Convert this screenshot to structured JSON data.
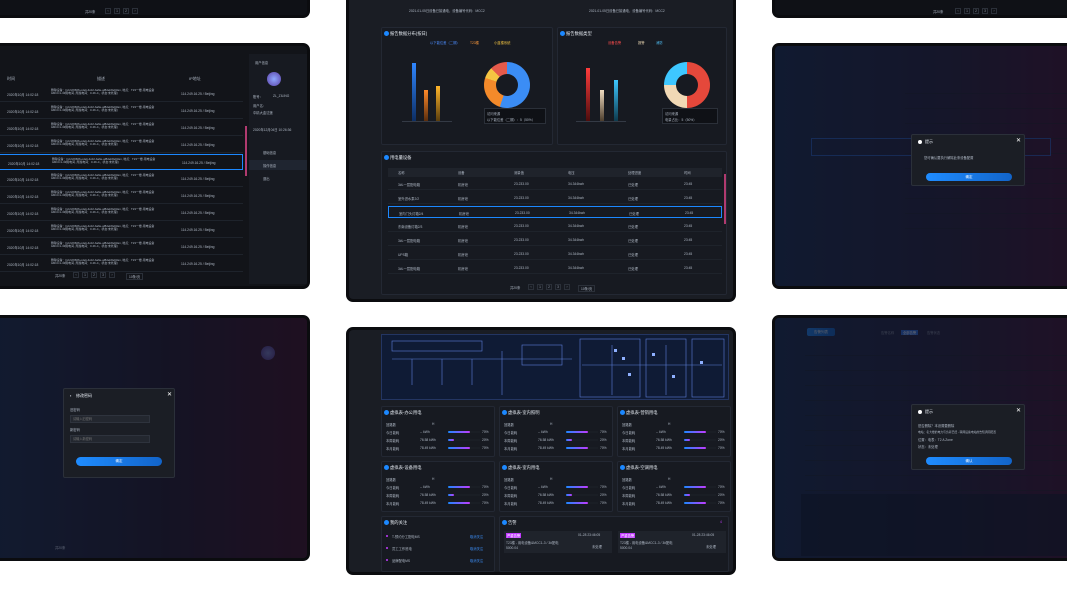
{
  "top_left_card": {
    "pager": "共20条"
  },
  "users_card": {
    "header": {
      "col1": "时间",
      "col2": "描述",
      "col3": "IP地址"
    },
    "rows": [
      {
        "time": "2020年10月 14:02:18",
        "desc": "删除设备：[id:2cf0666-odeli-4cd2-ba6e-af8deb8e63an, 地点：T23一楼-用电设备&MCC1-3#用电间, 所属电间：0.4K-4，状态:未处理]",
        "ip": "114.249.16.25 / Beijing"
      },
      {
        "time": "2020年10月 14:02:18",
        "desc": "删除设备：[id:2cf0666-odeli-4cd2-ba6e-af8deb8e63an, 地点：T23一楼-用电设备&MCC1-3#用电间, 所属电间：0.4K-4，状态:未处理]",
        "ip": "114.249.16.25 / Beijing"
      },
      {
        "time": "2020年10月 14:02:18",
        "desc": "删除设备：[id:2cf0666-odeli-4cd2-ba6e-af8deb8e63an, 地点：T23一楼-用电设备&MCC1-3#用电间, 所属电间：0.4K-4，状态:未处理]",
        "ip": "114.249.16.25 / Beijing"
      },
      {
        "time": "2020年10月 14:02:18",
        "desc": "删除设备：[id:2cf0666-odeli-4cd2-ba6e-af8deb8e63an, 地点：T23一楼-用电设备&MCC1-3#用电间, 所属电间：0.4K-4，状态:未处理]",
        "ip": "114.249.16.25 / Beijing"
      },
      {
        "time": "2020年10月 14:02:18",
        "desc": "删除设备：[id:2cf0666-odeli-4cd2-ba6e-af8deb8e63an, 地点：T23一楼-用电设备&MCC1-3#用电间, 所属电间：0.4K-4，状态:未处理]",
        "ip": "114.249.16.25 / Beijing"
      },
      {
        "time": "2020年10月 14:02:18",
        "desc": "删除设备：[id:2cf0666-odeli-4cd2-ba6e-af8deb8e63an, 地点：T23一楼-用电设备&MCC1-3#用电间, 所属电间：0.4K-4，状态:未处理]",
        "ip": "114.249.16.25 / Beijing"
      },
      {
        "time": "2020年10月 14:02:18",
        "desc": "删除设备：[id:2cf0666-odeli-4cd2-ba6e-af8deb8e63an, 地点：T23一楼-用电设备&MCC1-3#用电间, 所属电间：0.4K-4，状态:未处理]",
        "ip": "114.249.16.25 / Beijing"
      },
      {
        "time": "2020年10月 14:02:18",
        "desc": "删除设备：[id:2cf0666-odeli-4cd2-ba6e-af8deb8e63an, 地点：T23一楼-用电设备&MCC1-3#用电间, 所属电间：0.4K-4，状态:未处理]",
        "ip": "114.249.16.25 / Beijing"
      },
      {
        "time": "2020年10月 14:02:18",
        "desc": "删除设备：[id:2cf0666-odeli-4cd2-ba6e-af8deb8e63an, 地点：T23一楼-用电设备&MCC1-3#用电间, 所属电间：0.4K-4，状态:未处理]",
        "ip": "114.249.16.25 / Beijing"
      },
      {
        "time": "2020年10月 14:02:18",
        "desc": "删除设备：[id:2cf0666-odeli-4cd2-ba6e-af8deb8e63an, 地点：T23一楼-用电设备&MCC1-3#用电间, 所属电间：0.4K-4，状态:未处理]",
        "ip": "114.249.16.25 / Beijing"
      },
      {
        "time": "2020年10月 14:02:18",
        "desc": "删除设备：[id:2cf0666-odeli-4cd2-ba6e-af8deb8e63an, 地点：T23一楼-用电设备&MCC1-3#用电间, 所属电间：0.4K-4，状态:未处理]",
        "ip": "114.249.16.25 / Beijing"
      }
    ],
    "pager": "共20条",
    "pager_select": "10条/页",
    "profile": {
      "section": "用户信息",
      "name_label": "账号：",
      "name": "ZL_ZILING",
      "dept_label": "用户名：",
      "dept": "中精大金沈莲",
      "date": "2020年12月04日 10:26:36"
    },
    "menu": [
      "基础信息",
      "操作信息",
      "退出"
    ]
  },
  "password_card": {
    "dialog_title": "修改密码",
    "old_label": "旧密码",
    "old_placeholder": "请输入旧密码",
    "new_label": "新密码",
    "new_placeholder": "请输入新密码",
    "confirm": "确定",
    "pager": "共20条"
  },
  "dashboard_card": {
    "top_banner_left": "2021-01-05日设备已接通电，设备编号代码：MCC2",
    "top_banner_right": "2021-01-05日设备已接通电，设备编号代码：MCC2",
    "chart1": {
      "title": "报告数据分布(按日)",
      "legend": [
        "以下能位差（二期）",
        "T23楼",
        "小蓝楼系统"
      ],
      "donut_label": "访问来源",
      "donut_value": "以下能位差（二期）：5（50%）"
    },
    "chart2": {
      "title": "报告数据类型",
      "legend": [
        "设备告警",
        "报警",
        "消防"
      ],
      "donut_label": "访问来源",
      "donut_value": "电量占比：5（50%）"
    },
    "table_title": "用电量设备",
    "table_header": [
      "名称",
      "设备",
      "测量值",
      "电压",
      "处理进度",
      "时间"
    ],
    "table_rows": [
      [
        "3#L一层配电箱",
        "机房泄",
        "23.233.00",
        "34.344kwh",
        "已处理",
        "23:45"
      ],
      [
        "室外进水泵2/2",
        "机房泄",
        "23.233.00",
        "34.344kwh",
        "已处理",
        "23:45"
      ],
      [
        "室内门头灯箱2/4",
        "机房泄",
        "23.233.00",
        "34.344kwh",
        "已处理",
        "23:45"
      ],
      [
        "东南设备灯箱2/3",
        "机房泄",
        "23.233.00",
        "34.344kwh",
        "已处理",
        "23:45"
      ],
      [
        "3#L一层配电箱",
        "机房泄",
        "23.233.00",
        "34.344kwh",
        "已处理",
        "23:45"
      ],
      [
        "UPS箱",
        "机房泄",
        "23.233.00",
        "34.344kwh",
        "已处理",
        "23:45"
      ],
      [
        "3#L一层配电箱",
        "机房泄",
        "23.233.00",
        "34.344kwh",
        "已处理",
        "23:45"
      ]
    ],
    "pager": "共20条",
    "pager_select": "10条/页"
  },
  "monitor_card": {
    "panels": [
      {
        "title": "虚拟表-办公用电",
        "c1": "回路数",
        "v1": "H"
      },
      {
        "title": "虚拟表-室内照明",
        "c1": "回路数",
        "v1": "H"
      },
      {
        "title": "虚拟表-营销用电",
        "c1": "回路数",
        "v1": "H"
      },
      {
        "title": "虚拟表-设备用电",
        "c1": "回路数",
        "v1": "H"
      },
      {
        "title": "虚拟表-室内用电",
        "c1": "回路数",
        "v1": "H"
      },
      {
        "title": "虚拟表-空调用电",
        "c1": "回路数",
        "v1": "H"
      }
    ],
    "row_labels": [
      "今日能耗",
      "本周能耗",
      "本月能耗"
    ],
    "row_values": [
      "-- kWh",
      "76.58 kWh",
      "78.49 kWh"
    ],
    "row_pcts": [
      "70%",
      "20%",
      "70%"
    ],
    "focus_title": "我的关注",
    "focus_items": [
      {
        "name": "T-预约分工配电MS",
        "action": "取消关注"
      },
      {
        "name": "员工工作底电",
        "action": "取消关注"
      },
      {
        "name": "品牌配电MS",
        "action": "取消关注"
      }
    ],
    "alarm_title": "告警",
    "alarm_count": "4",
    "alarms": [
      {
        "tag": "严重告警",
        "time": "01-28 23:46:05",
        "text": "T23楼 - 用电设备&MCC1-3 / 3#配电",
        "value": "5000.04",
        "status": "未处理"
      },
      {
        "tag": "严重告警",
        "time": "01-28 23:46:05",
        "text": "T23楼 - 用电设备&MCC1-3 / 3#配电",
        "value": "5000.04",
        "status": "未处理"
      }
    ]
  },
  "confirm_card": {
    "dialog_title": "提示",
    "text": "您可确认要执行解除此条设备配置",
    "ok": "确定"
  },
  "alarm_card": {
    "dialog_title": "提示",
    "text1": "是否删除？本设置要删除",
    "text2": "电站：名大楼的电力与负荷已经 - 联网设备电站的告知调阅配置",
    "text3": "位置：电表：T2 A Zone",
    "text4": "状态：未处理",
    "ok": "确认",
    "filter_button": "告警列表",
    "tabs": [
      "告警名称",
      "全部告警",
      "告警状态"
    ]
  }
}
